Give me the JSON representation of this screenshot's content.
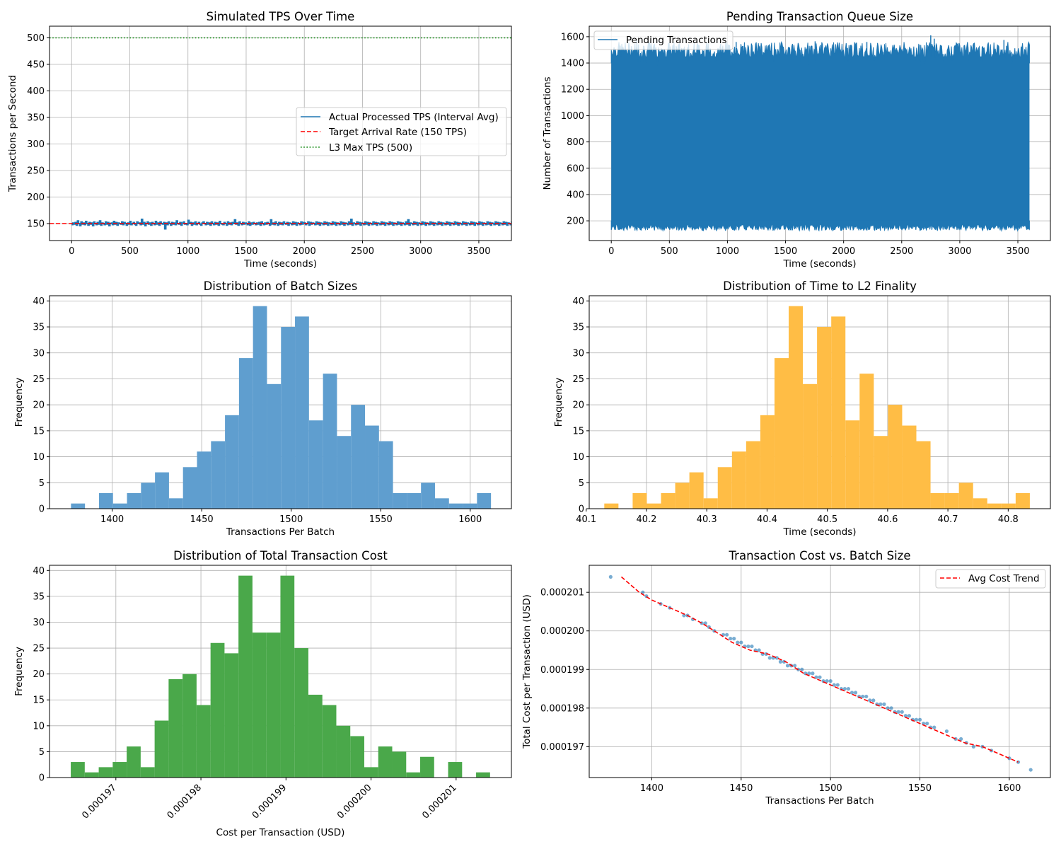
{
  "figure": {
    "background": "#ffffff"
  },
  "chart_data": [
    {
      "id": "tps",
      "type": "line",
      "title": "Simulated TPS Over Time",
      "xlabel": "Time (seconds)",
      "ylabel": "Transactions per Second",
      "xlim": [
        -190,
        3780
      ],
      "ylim": [
        118,
        522
      ],
      "xticks": [
        0,
        500,
        1000,
        1500,
        2000,
        2500,
        3000,
        3500
      ],
      "yticks": [
        150,
        200,
        250,
        300,
        350,
        400,
        450,
        500
      ],
      "grid": true,
      "legend": {
        "placement": "center-right",
        "entries": [
          "Actual Processed TPS (Interval Avg)",
          "Target Arrival Rate (150 TPS)",
          "L3 Max TPS (500)"
        ]
      },
      "series": [
        {
          "name": "Actual Processed TPS (Interval Avg)",
          "color": "#1f77b4",
          "style": "solid",
          "x_start": 0,
          "x_step": 10,
          "values": [
            148,
            151,
            149,
            152,
            147,
            155,
            150,
            146,
            153,
            149,
            151,
            148,
            154,
            150,
            147,
            152,
            149,
            151,
            146,
            153,
            150,
            148,
            152,
            149,
            155,
            147,
            151,
            150,
            148,
            153,
            149,
            152,
            146,
            150,
            151,
            148,
            154,
            149,
            152,
            147,
            151,
            150,
            149,
            153,
            148,
            152,
            150,
            147,
            151,
            149,
            154,
            148,
            150,
            152,
            149,
            147,
            153,
            150,
            151,
            148,
            158,
            149,
            152,
            146,
            150,
            153,
            149,
            151,
            147,
            152,
            150,
            148,
            154,
            149,
            151,
            147,
            153,
            150,
            149,
            152,
            140,
            151,
            148,
            153,
            150,
            147,
            152,
            149,
            151,
            148,
            155,
            150,
            149,
            152,
            147,
            151,
            153,
            149,
            150,
            148,
            156,
            150,
            152,
            147,
            151,
            149,
            153,
            148,
            150,
            152,
            149,
            147,
            151,
            153,
            150,
            148,
            152,
            149,
            151,
            147,
            153,
            150,
            148,
            152,
            149,
            151,
            147,
            154,
            150,
            149,
            148,
            152,
            150,
            147,
            153,
            149,
            151,
            148,
            152,
            150,
            157,
            149,
            151,
            147,
            153,
            150,
            148,
            152,
            149,
            151,
            150,
            148,
            153,
            147,
            151,
            149,
            152,
            150,
            148,
            151,
            149,
            152,
            147,
            153,
            150,
            148,
            151,
            149,
            152,
            150,
            147,
            157,
            149,
            151,
            148,
            153,
            150,
            147,
            152,
            149,
            151,
            148,
            153,
            150,
            149,
            152,
            147,
            151,
            150,
            148,
            153,
            149,
            152,
            147,
            151,
            150,
            148,
            153,
            149,
            152,
            151,
            148,
            150,
            153,
            147,
            152,
            149,
            151,
            150,
            148,
            153,
            149,
            152,
            147,
            151,
            150,
            148,
            153,
            149,
            152,
            147,
            151,
            150,
            148,
            153,
            149,
            152,
            147,
            151,
            150,
            148,
            153,
            149,
            152,
            147,
            151,
            150,
            148,
            153,
            149,
            158,
            147,
            151,
            150,
            148,
            153,
            149,
            152,
            147,
            151,
            150,
            148,
            153,
            149,
            152,
            147,
            151,
            150,
            148,
            153,
            149,
            152,
            147,
            151,
            150,
            148,
            153,
            149,
            152,
            147,
            151,
            150,
            148,
            153,
            149,
            152,
            147,
            151,
            150,
            148,
            153,
            149,
            152,
            147,
            151,
            150,
            148,
            153,
            149,
            157,
            147,
            151,
            150,
            148,
            153,
            149,
            152,
            147,
            151,
            150,
            148,
            153,
            149,
            152,
            147,
            151,
            150,
            148,
            153,
            149,
            152,
            147,
            151,
            150,
            148,
            153,
            149,
            152,
            147,
            151,
            150,
            148,
            153,
            149,
            152,
            147,
            151,
            150,
            148,
            153,
            149,
            152,
            147,
            151,
            150,
            148,
            153,
            149,
            152,
            147,
            151,
            150,
            148,
            153,
            149,
            152,
            147,
            151,
            150,
            148,
            153,
            149,
            152,
            147,
            151,
            150,
            148,
            153,
            149,
            152,
            147,
            151,
            150,
            148,
            153,
            149,
            152,
            147,
            151,
            150,
            148,
            153,
            149,
            152,
            147,
            151,
            150,
            148,
            153,
            149,
            152,
            147,
            141,
            150
          ]
        },
        {
          "name": "Target Arrival Rate (150 TPS)",
          "color": "#ff0000",
          "style": "dashed",
          "y": 150
        },
        {
          "name": "L3 Max TPS (500)",
          "color": "#008000",
          "style": "dotted",
          "y": 500
        }
      ]
    },
    {
      "id": "queue",
      "type": "line",
      "title": "Pending Transaction Queue Size",
      "xlabel": "Time (seconds)",
      "ylabel": "Number of Transactions",
      "xlim": [
        -190,
        3780
      ],
      "ylim": [
        50,
        1680
      ],
      "xticks": [
        0,
        500,
        1000,
        1500,
        2000,
        2500,
        3000,
        3500
      ],
      "yticks": [
        200,
        400,
        600,
        800,
        1000,
        1200,
        1400,
        1600
      ],
      "grid": true,
      "legend": {
        "placement": "top-left",
        "entries": [
          "Pending Transactions"
        ]
      },
      "series": [
        {
          "name": "Pending Transactions",
          "color": "#1f77b4",
          "x_range": [
            0,
            3600
          ],
          "low_range": [
            125,
            175
          ],
          "high_range": [
            1440,
            1560
          ],
          "peak_max": 1610,
          "trough_min": 125
        }
      ]
    },
    {
      "id": "batch",
      "type": "bar",
      "title": "Distribution of Batch Sizes",
      "xlabel": "Transactions Per Batch",
      "ylabel": "Frequency",
      "xlim": [
        1365,
        1623
      ],
      "ylim": [
        0,
        41
      ],
      "xticks": [
        1400,
        1450,
        1500,
        1550,
        1600
      ],
      "yticks": [
        0,
        5,
        10,
        15,
        20,
        25,
        30,
        35,
        40
      ],
      "grid": true,
      "color": "#5f9ecf",
      "bin_start": 1377,
      "bin_width": 7.82,
      "values": [
        1,
        0,
        3,
        1,
        3,
        5,
        7,
        2,
        8,
        11,
        13,
        18,
        29,
        39,
        24,
        35,
        37,
        17,
        26,
        14,
        20,
        16,
        13,
        3,
        3,
        5,
        2,
        1,
        1,
        3
      ]
    },
    {
      "id": "finality",
      "type": "bar",
      "title": "Distribution of Time to L2 Finality",
      "xlabel": "Time (seconds)",
      "ylabel": "Frequency",
      "xlim": [
        40.105,
        40.87
      ],
      "ylim": [
        0,
        41
      ],
      "xticks": [
        40.1,
        40.2,
        40.3,
        40.4,
        40.5,
        40.6,
        40.7,
        40.8
      ],
      "yticks": [
        0,
        5,
        10,
        15,
        20,
        25,
        30,
        35,
        40
      ],
      "grid": true,
      "color": "#ffbd45",
      "bin_start": 40.13,
      "bin_width": 0.02353,
      "values": [
        1,
        0,
        3,
        1,
        3,
        5,
        7,
        2,
        8,
        11,
        13,
        18,
        29,
        39,
        24,
        35,
        37,
        17,
        26,
        14,
        20,
        16,
        13,
        3,
        3,
        5,
        2,
        1,
        1,
        3
      ]
    },
    {
      "id": "cost",
      "type": "bar",
      "title": "Distribution of Total Transaction Cost",
      "xlabel": "Cost per Transaction (USD)",
      "ylabel": "Frequency",
      "xlim": [
        0.00019622,
        0.00020165
      ],
      "ylim": [
        0,
        41
      ],
      "xticks": [
        0.000197,
        0.000198,
        0.000199,
        0.0002,
        0.000201
      ],
      "xtick_labels": [
        "0.000197",
        "0.000198",
        "0.000199",
        "0.000200",
        "0.000201"
      ],
      "yticks": [
        0,
        5,
        10,
        15,
        20,
        25,
        30,
        35,
        40
      ],
      "grid": true,
      "color": "#4aa84a",
      "bin_start": 0.00019647,
      "bin_width": 1.643e-07,
      "values": [
        3,
        1,
        2,
        3,
        6,
        2,
        11,
        19,
        20,
        14,
        26,
        24,
        39,
        28,
        28,
        39,
        25,
        16,
        14,
        10,
        8,
        2,
        6,
        5,
        1,
        4,
        0,
        3,
        0,
        1
      ]
    },
    {
      "id": "scatter",
      "type": "scatter",
      "title": "Transaction Cost vs. Batch Size",
      "xlabel": "Transactions Per Batch",
      "ylabel": "Total Cost per Transaction (USD)",
      "xlim": [
        1365,
        1623
      ],
      "ylim": [
        0.0001962,
        0.0002017
      ],
      "xticks": [
        1400,
        1450,
        1500,
        1550,
        1600
      ],
      "yticks": [
        0.000197,
        0.000198,
        0.000199,
        0.0002,
        0.000201
      ],
      "ytick_labels": [
        "0.000197",
        "0.000198",
        "0.000199",
        "0.000200",
        "0.000201"
      ],
      "grid": true,
      "legend": {
        "placement": "top-right",
        "entries": [
          "Avg Cost Trend"
        ]
      },
      "point_color": "#1f77b4",
      "points": {
        "x": [
          1377,
          1395,
          1397,
          1405,
          1410,
          1418,
          1420,
          1423,
          1428,
          1430,
          1432,
          1435,
          1440,
          1442,
          1444,
          1446,
          1448,
          1450,
          1452,
          1454,
          1456,
          1458,
          1460,
          1462,
          1464,
          1466,
          1468,
          1470,
          1472,
          1474,
          1476,
          1478,
          1480,
          1482,
          1484,
          1486,
          1488,
          1490,
          1492,
          1494,
          1496,
          1498,
          1500,
          1502,
          1504,
          1506,
          1508,
          1510,
          1512,
          1514,
          1516,
          1518,
          1520,
          1522,
          1524,
          1526,
          1528,
          1530,
          1532,
          1534,
          1536,
          1538,
          1540,
          1542,
          1544,
          1546,
          1548,
          1550,
          1552,
          1554,
          1556,
          1558,
          1565,
          1570,
          1573,
          1576,
          1580,
          1585,
          1590,
          1600,
          1605,
          1612
        ],
        "y": [
          0.0002014,
          0.000201,
          0.0002009,
          0.0002007,
          0.0002006,
          0.0002004,
          0.0002004,
          0.0002003,
          0.0002002,
          0.0002002,
          0.0002001,
          0.0002,
          0.0001999,
          0.0001999,
          0.0001998,
          0.0001998,
          0.0001997,
          0.0001997,
          0.0001996,
          0.0001996,
          0.0001996,
          0.0001995,
          0.0001995,
          0.0001994,
          0.0001994,
          0.0001993,
          0.0001993,
          0.0001993,
          0.0001992,
          0.0001992,
          0.0001991,
          0.0001991,
          0.0001991,
          0.000199,
          0.000199,
          0.0001989,
          0.0001989,
          0.0001989,
          0.0001988,
          0.0001988,
          0.0001987,
          0.0001987,
          0.0001987,
          0.0001986,
          0.0001986,
          0.0001985,
          0.0001985,
          0.0001985,
          0.0001984,
          0.0001984,
          0.0001983,
          0.0001983,
          0.0001983,
          0.0001982,
          0.0001982,
          0.0001981,
          0.0001981,
          0.0001981,
          0.000198,
          0.000198,
          0.0001979,
          0.0001979,
          0.0001979,
          0.0001978,
          0.0001978,
          0.0001977,
          0.0001977,
          0.0001977,
          0.0001976,
          0.0001976,
          0.0001975,
          0.0001975,
          0.0001974,
          0.0001972,
          0.0001972,
          0.0001971,
          0.000197,
          0.000197,
          0.0001969,
          0.0001967,
          0.0001966,
          0.0001964
        ]
      },
      "trend": {
        "name": "Avg Cost Trend",
        "color": "#ff0000",
        "x": [
          1383,
          1393,
          1400,
          1410,
          1420,
          1428,
          1435,
          1445,
          1455,
          1465,
          1475,
          1485,
          1495,
          1505,
          1515,
          1525,
          1535,
          1545,
          1555,
          1565,
          1575,
          1585,
          1595,
          1605
        ],
        "y": [
          0.0002014,
          0.000201,
          0.0002008,
          0.0002006,
          0.0002004,
          0.0002002,
          0.0002,
          0.0001997,
          0.0001995,
          0.0001994,
          0.0001992,
          0.0001989,
          0.0001987,
          0.0001985,
          0.0001983,
          0.0001981,
          0.0001979,
          0.0001977,
          0.0001975,
          0.0001973,
          0.0001971,
          0.000197,
          0.0001968,
          0.0001966
        ]
      }
    }
  ]
}
